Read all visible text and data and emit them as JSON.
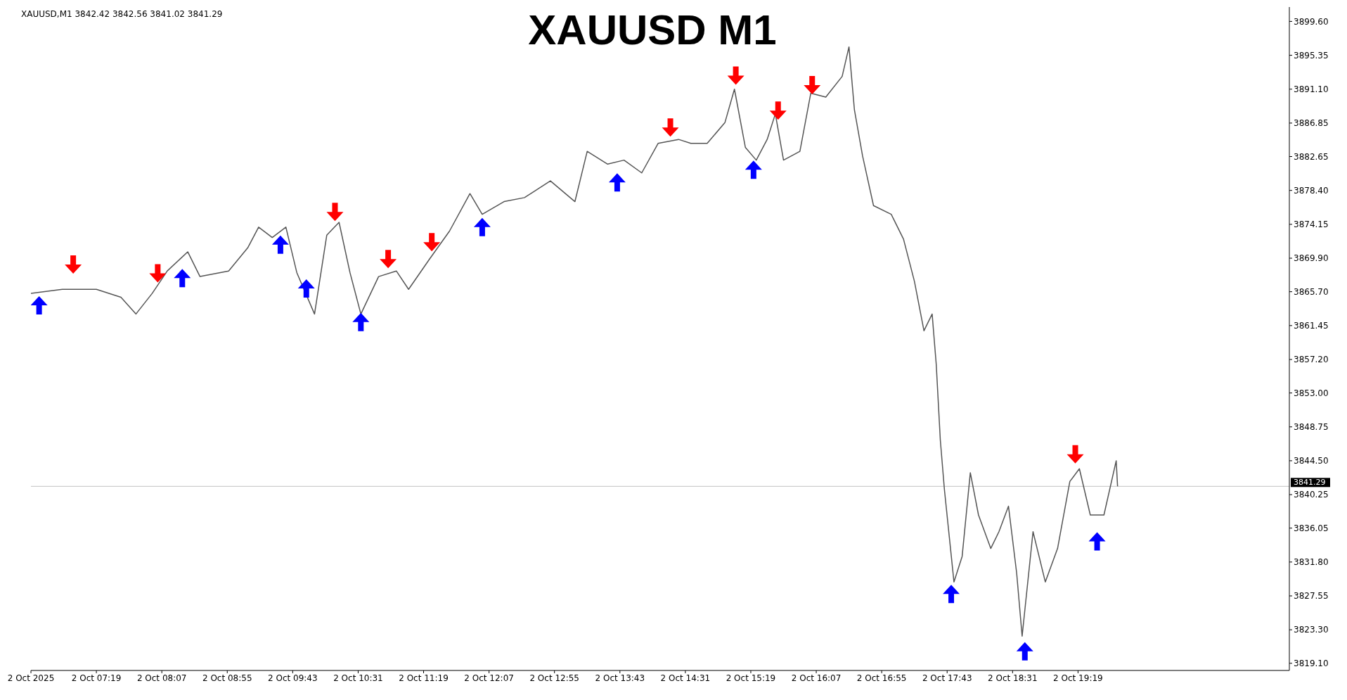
{
  "chart_data": {
    "type": "line",
    "title": "XAUUSD M1",
    "annotations": [
      "XAUUSD,M1  3842.42 3842.56 3841.02 3841.29"
    ],
    "xlim": [
      "2025-10-02T06:31",
      "2025-10-02T21:54"
    ],
    "ylim": [
      3818.2,
      3901.4
    ],
    "xticks": [
      {
        "value": "2025-10-02T06:31",
        "label": "2 Oct 2025"
      },
      {
        "value": "2025-10-02T07:19",
        "label": "2 Oct 07:19"
      },
      {
        "value": "2025-10-02T08:07",
        "label": "2 Oct 08:07"
      },
      {
        "value": "2025-10-02T08:55",
        "label": "2 Oct 08:55"
      },
      {
        "value": "2025-10-02T09:43",
        "label": "2 Oct 09:43"
      },
      {
        "value": "2025-10-02T10:31",
        "label": "2 Oct 10:31"
      },
      {
        "value": "2025-10-02T11:19",
        "label": "2 Oct 11:19"
      },
      {
        "value": "2025-10-02T12:07",
        "label": "2 Oct 12:07"
      },
      {
        "value": "2025-10-02T12:55",
        "label": "2 Oct 12:55"
      },
      {
        "value": "2025-10-02T13:43",
        "label": "2 Oct 13:43"
      },
      {
        "value": "2025-10-02T14:31",
        "label": "2 Oct 14:31"
      },
      {
        "value": "2025-10-02T15:19",
        "label": "2 Oct 15:19"
      },
      {
        "value": "2025-10-02T16:07",
        "label": "2 Oct 16:07"
      },
      {
        "value": "2025-10-02T16:55",
        "label": "2 Oct 16:55"
      },
      {
        "value": "2025-10-02T17:43",
        "label": "2 Oct 17:43"
      },
      {
        "value": "2025-10-02T18:31",
        "label": "2 Oct 18:31"
      },
      {
        "value": "2025-10-02T19:19",
        "label": "2 Oct 19:19"
      }
    ],
    "yticks": [
      {
        "value": 3899.6,
        "label": "3899.60"
      },
      {
        "value": 3895.35,
        "label": "3895.35"
      },
      {
        "value": 3891.1,
        "label": "3891.10"
      },
      {
        "value": 3886.85,
        "label": "3886.85"
      },
      {
        "value": 3882.65,
        "label": "3882.65"
      },
      {
        "value": 3878.4,
        "label": "3878.40"
      },
      {
        "value": 3874.15,
        "label": "3874.15"
      },
      {
        "value": 3869.9,
        "label": "3869.90"
      },
      {
        "value": 3865.7,
        "label": "3865.70"
      },
      {
        "value": 3861.45,
        "label": "3861.45"
      },
      {
        "value": 3857.2,
        "label": "3857.20"
      },
      {
        "value": 3853,
        "label": "3853.00"
      },
      {
        "value": 3848.75,
        "label": "3848.75"
      },
      {
        "value": 3844.5,
        "label": "3844.50"
      },
      {
        "value": 3840.25,
        "label": "3840.25"
      },
      {
        "value": 3836.05,
        "label": "3836.05"
      },
      {
        "value": 3831.8,
        "label": "3831.80"
      },
      {
        "value": 3827.55,
        "label": "3827.55"
      },
      {
        "value": 3823.3,
        "label": "3823.30"
      },
      {
        "value": 3819.1,
        "label": "3819.10"
      }
    ],
    "ref_lines": [
      {
        "axis": "y",
        "value": 3841.29,
        "label": "3841.29",
        "color": "#c0c0c0"
      }
    ],
    "grid": false,
    "legend": false,
    "series": [
      {
        "color": "#555555",
        "x": [
          "2025-10-02T06:31",
          "2025-10-02T06:54",
          "2025-10-02T07:19",
          "2025-10-02T07:37",
          "2025-10-02T07:48",
          "2025-10-02T08:00",
          "2025-10-02T08:11",
          "2025-10-02T08:26",
          "2025-10-02T08:35",
          "2025-10-02T08:56",
          "2025-10-02T09:10",
          "2025-10-02T09:18",
          "2025-10-02T09:28",
          "2025-10-02T09:38",
          "2025-10-02T09:46",
          "2025-10-02T09:59",
          "2025-10-02T10:08",
          "2025-10-02T10:17",
          "2025-10-02T10:25",
          "2025-10-02T10:33",
          "2025-10-02T10:46",
          "2025-10-02T10:59",
          "2025-10-02T11:08",
          "2025-10-02T11:23",
          "2025-10-02T11:38",
          "2025-10-02T11:53",
          "2025-10-02T12:02",
          "2025-10-02T12:18",
          "2025-10-02T12:33",
          "2025-10-02T12:52",
          "2025-10-02T13:10",
          "2025-10-02T13:19",
          "2025-10-02T13:34",
          "2025-10-02T13:46",
          "2025-10-02T13:59",
          "2025-10-02T14:11",
          "2025-10-02T14:26",
          "2025-10-02T14:35",
          "2025-10-02T14:47",
          "2025-10-02T15:00",
          "2025-10-02T15:07",
          "2025-10-02T15:15",
          "2025-10-02T15:23",
          "2025-10-02T15:31",
          "2025-10-02T15:37",
          "2025-10-02T15:43",
          "2025-10-02T15:55",
          "2025-10-02T16:03",
          "2025-10-02T16:14",
          "2025-10-02T16:26",
          "2025-10-02T16:31",
          "2025-10-02T16:35",
          "2025-10-02T16:41",
          "2025-10-02T16:49",
          "2025-10-02T17:02",
          "2025-10-02T17:11",
          "2025-10-02T17:19",
          "2025-10-02T17:26",
          "2025-10-02T17:32",
          "2025-10-02T17:35",
          "2025-10-02T17:38",
          "2025-10-02T17:41",
          "2025-10-02T17:48",
          "2025-10-02T17:54",
          "2025-10-02T18:00",
          "2025-10-02T18:06",
          "2025-10-02T18:15",
          "2025-10-02T18:21",
          "2025-10-02T18:28",
          "2025-10-02T18:34",
          "2025-10-02T18:38",
          "2025-10-02T18:46",
          "2025-10-02T18:55",
          "2025-10-02T19:04",
          "2025-10-02T19:13",
          "2025-10-02T19:20",
          "2025-10-02T19:28",
          "2025-10-02T19:38",
          "2025-10-02T19:47",
          "2025-10-02T19:48"
        ],
        "values": [
          3865.5,
          3866.0,
          3866.0,
          3865.0,
          3862.9,
          3865.5,
          3868.3,
          3870.7,
          3867.6,
          3868.3,
          3871.2,
          3873.8,
          3872.5,
          3873.8,
          3868.1,
          3862.9,
          3872.8,
          3874.4,
          3868.1,
          3862.9,
          3867.6,
          3868.3,
          3866.0,
          3869.7,
          3873.3,
          3878.0,
          3875.4,
          3877.0,
          3877.5,
          3879.6,
          3877.0,
          3883.3,
          3881.7,
          3882.2,
          3880.6,
          3884.3,
          3884.8,
          3884.3,
          3884.3,
          3886.9,
          3891.1,
          3883.8,
          3882.2,
          3884.8,
          3888.0,
          3882.2,
          3883.3,
          3890.6,
          3890.1,
          3892.7,
          3896.4,
          3888.5,
          3882.7,
          3876.5,
          3875.4,
          3872.3,
          3867.0,
          3860.8,
          3862.9,
          3856.6,
          3847.1,
          3840.9,
          3829.3,
          3832.5,
          3843.0,
          3837.7,
          3833.5,
          3835.6,
          3838.8,
          3830.4,
          3822.5,
          3835.6,
          3829.3,
          3833.5,
          3841.9,
          3843.5,
          3837.7,
          3837.7,
          3844.5,
          3841.3
        ]
      },
      {
        "type": "scatter",
        "color": "#0000ff",
        "x": [
          "2025-10-02T06:37",
          "2025-10-02T08:22",
          "2025-10-02T09:34",
          "2025-10-02T09:53",
          "2025-10-02T10:33",
          "2025-10-02T12:02",
          "2025-10-02T13:41",
          "2025-10-02T15:21",
          "2025-10-02T17:46",
          "2025-10-02T18:40",
          "2025-10-02T19:33"
        ],
        "values": [
          3864.0,
          3867.4,
          3871.6,
          3866.1,
          3861.9,
          3873.8,
          3879.4,
          3881.0,
          3827.8,
          3820.6,
          3834.4
        ]
      },
      {
        "type": "scatter",
        "color": "#ff0000",
        "x": [
          "2025-10-02T07:02",
          "2025-10-02T08:04",
          "2025-10-02T10:14",
          "2025-10-02T10:53",
          "2025-10-02T11:25",
          "2025-10-02T14:20",
          "2025-10-02T15:08",
          "2025-10-02T15:39",
          "2025-10-02T16:04",
          "2025-10-02T19:17"
        ],
        "values": [
          3869.1,
          3868.0,
          3875.7,
          3869.8,
          3871.9,
          3886.3,
          3892.8,
          3888.4,
          3891.6,
          3845.3
        ]
      }
    ]
  }
}
